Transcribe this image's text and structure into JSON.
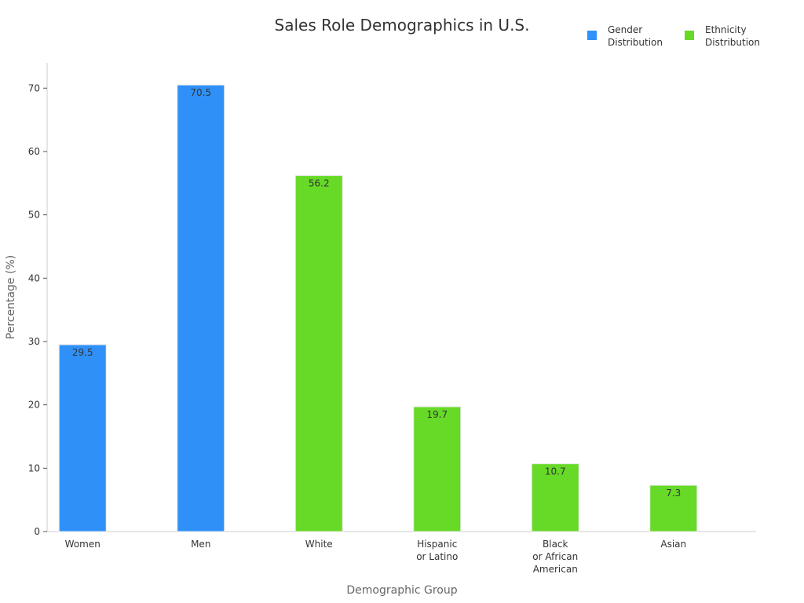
{
  "chart_data": {
    "type": "bar",
    "title": "Sales Role Demographics in U.S.",
    "xlabel": "Demographic Group",
    "ylabel": "Percentage (%)",
    "ylim": [
      0,
      74
    ],
    "yticks": [
      0,
      10,
      20,
      30,
      40,
      50,
      60,
      70
    ],
    "grid": false,
    "legend_position": "top-right",
    "categories": [
      "Women",
      "Men",
      "White",
      "Hispanic\nor Latino",
      "Black\nor African\nAmerican",
      "Asian"
    ],
    "series": [
      {
        "name": "Gender\nDistribution",
        "color": "#2f91f8",
        "values": [
          29.5,
          70.5,
          null,
          null,
          null,
          null
        ]
      },
      {
        "name": "Ethnicity\nDistribution",
        "color": "#66da26",
        "values": [
          null,
          null,
          56.2,
          19.7,
          10.7,
          7.3
        ]
      }
    ]
  }
}
